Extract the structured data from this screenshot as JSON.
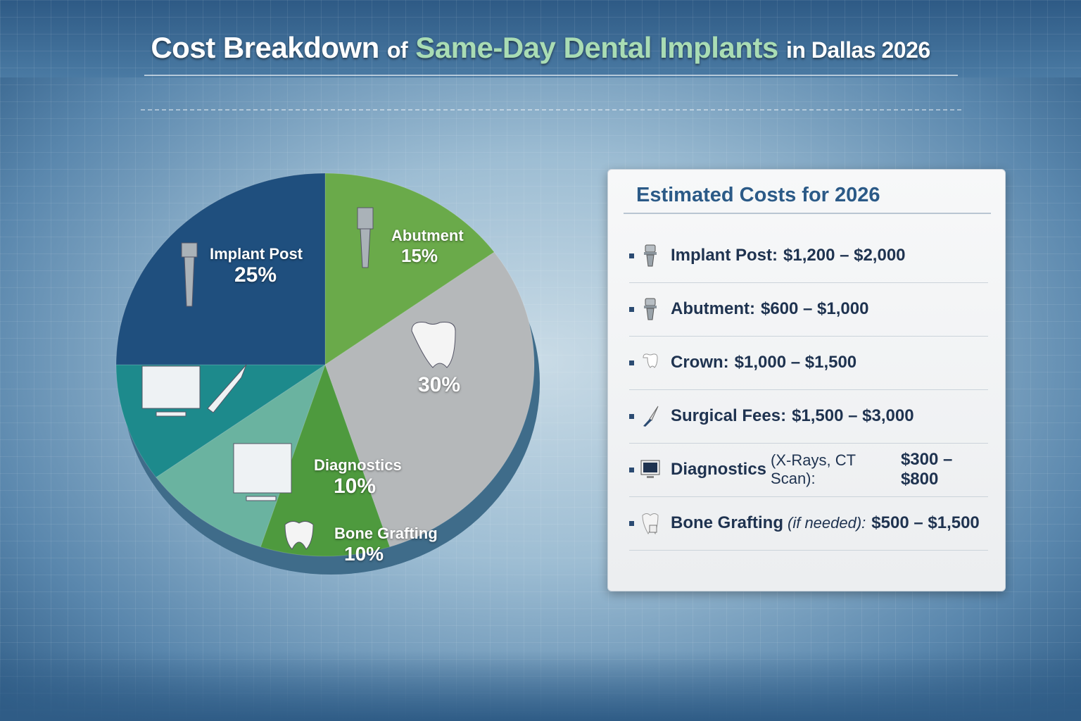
{
  "title": {
    "part1": "Cost Breakdown",
    "part2": "of",
    "part3": "Same-Day Dental Implants",
    "part4": "in Dallas 2026"
  },
  "colors": {
    "implant_post": "#1f4f7e",
    "abutment": "#6aaa4a",
    "crown": "#b5b8ba",
    "bone_grafting": "#4e9a3e",
    "diagnostics": "#6ab3a0",
    "surgical": "#1d8a8c",
    "title_highlight": "#a9dcb4",
    "card_heading": "#2b5a87"
  },
  "chart_data": {
    "type": "pie",
    "title": "Cost Breakdown of Same-Day Dental Implants in Dallas 2026",
    "slices": [
      {
        "key": "abutment",
        "label": "Abutment",
        "value": 15,
        "value_label": "15%",
        "icon": "abutment-icon"
      },
      {
        "key": "crown",
        "label": "",
        "value": 30,
        "value_label": "30%",
        "icon": "crown-tooth-icon"
      },
      {
        "key": "bone_grafting",
        "label": "Bone Grafting",
        "value": 10,
        "value_label": "10%",
        "icon": "tooth-graft-icon"
      },
      {
        "key": "diagnostics",
        "label": "Diagnostics",
        "value": 10,
        "value_label": "10%",
        "icon": "xray-monitor-icon"
      },
      {
        "key": "surgical",
        "label": "",
        "value": 10,
        "value_label": "",
        "icon": "monitor-scalpel-icon"
      },
      {
        "key": "implant_post",
        "label": "Implant Post",
        "value": 25,
        "value_label": "25%",
        "icon": "implant-screw-icon"
      }
    ]
  },
  "card": {
    "heading": "Estimated Costs for 2026",
    "items": [
      {
        "name": "Implant Post:",
        "qualifier": "",
        "price": "$1,200 – $2,000",
        "icon": "implant-icon"
      },
      {
        "name": "Abutment:",
        "qualifier": "",
        "price": "$600 – $1,000",
        "icon": "abutment-icon"
      },
      {
        "name": "Crown:",
        "qualifier": "",
        "price": "$1,000 – $1,500",
        "icon": "crown-icon"
      },
      {
        "name": "Surgical Fees:",
        "qualifier": "",
        "price": "$1,500 – $3,000",
        "icon": "scalpel-icon"
      },
      {
        "name": "Diagnostics",
        "qualifier": "(X-Rays, CT Scan):",
        "price": "$300 – $800",
        "icon": "monitor-icon"
      },
      {
        "name": "Bone Grafting",
        "qualifier": "(if needed):",
        "price": "$500 – $1,500",
        "icon": "tooth-graft-icon"
      }
    ]
  }
}
